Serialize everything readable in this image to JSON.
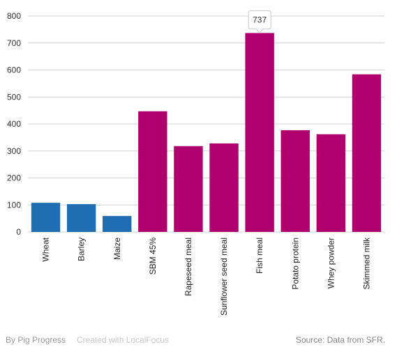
{
  "chart_data": {
    "type": "bar",
    "categories": [
      "Wheat",
      "Barley",
      "Maize",
      "SBM 45%",
      "Rapeseed meal",
      "Sunflower seed meal",
      "Fish meal",
      "Potato protein",
      "Whey powder",
      "Skimmed milk"
    ],
    "values": [
      108,
      103,
      59,
      447,
      318,
      328,
      737,
      377,
      362,
      584
    ],
    "bar_colors": [
      "#1f6db3",
      "#1f6db3",
      "#1f6db3",
      "#b0006e",
      "#b0006e",
      "#b0006e",
      "#b0006e",
      "#b0006e",
      "#b0006e",
      "#b0006e"
    ],
    "ylim": [
      0,
      800
    ],
    "yticks": [
      0,
      100,
      200,
      300,
      400,
      500,
      600,
      700,
      800
    ],
    "grid": true,
    "tooltip": {
      "category_index": 6,
      "text": "737"
    }
  },
  "footer": {
    "by": "By Pig Progress",
    "created": "Created with LocalFocus",
    "source": "Source:  Data from SFR."
  }
}
